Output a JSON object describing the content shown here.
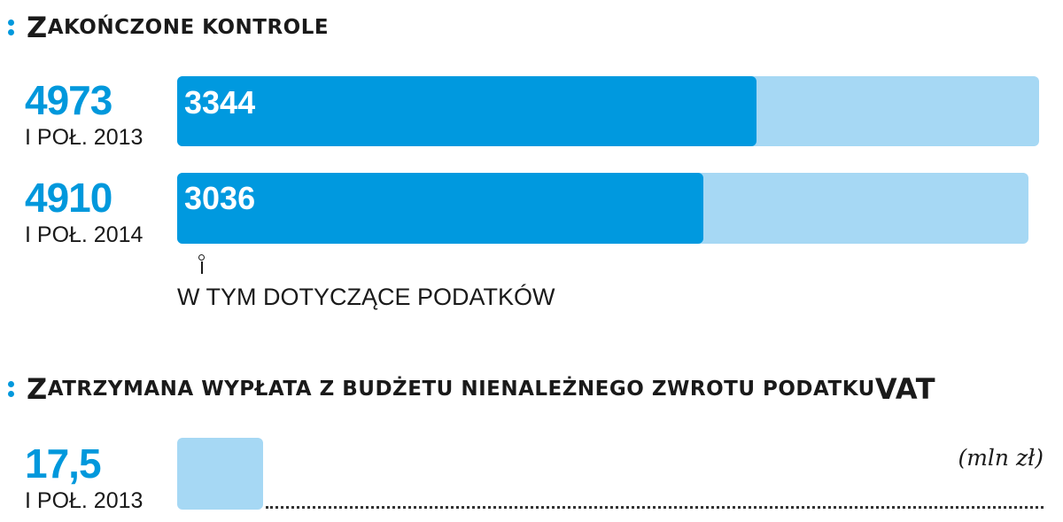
{
  "sections": [
    {
      "title": "Zakończone kontrole",
      "title_first": "Z",
      "title_rest": "akończone kontrole",
      "rows": [
        {
          "total": "4973",
          "period": "I POŁ. 2013",
          "part": "3344"
        },
        {
          "total": "4910",
          "period": "I POŁ. 2014",
          "part": "3036"
        }
      ],
      "note": "W TYM DOTYCZĄCE PODATKÓW"
    },
    {
      "title": "Zatrzymana wypłata z budżetu nienależnego zwrotu podatku VAT",
      "title_first": "Z",
      "title_rest": "atrzymana wypłata z budżetu nienależnego zwrotu podatku ",
      "title_vat": "VAT",
      "rows": [
        {
          "total": "17,5",
          "period": "I POŁ. 2013"
        }
      ],
      "unit": "(mln zł)"
    }
  ],
  "chart_data": [
    {
      "type": "bar",
      "orientation": "horizontal",
      "title": "Zakończone kontrole",
      "categories": [
        "I POŁ. 2013",
        "I POŁ. 2014"
      ],
      "series": [
        {
          "name": "",
          "values": [
            4973,
            4910
          ]
        },
        {
          "name": "W TYM DOTYCZĄCE PODATKÓW",
          "values": [
            3344,
            3036
          ]
        }
      ],
      "xlim": [
        0,
        5000
      ],
      "grid": false,
      "colors": {
        "total": "#a6d8f4",
        "part": "#0099df"
      }
    },
    {
      "type": "bar",
      "orientation": "horizontal",
      "title": "Zatrzymana wypłata z budżetu nienależnego zwrotu podatku VAT",
      "categories": [
        "I POŁ. 2013"
      ],
      "values": [
        17.5
      ],
      "unit": "(mln zł)",
      "grid": false,
      "colors": {
        "bar": "#a6d8f4"
      }
    }
  ]
}
